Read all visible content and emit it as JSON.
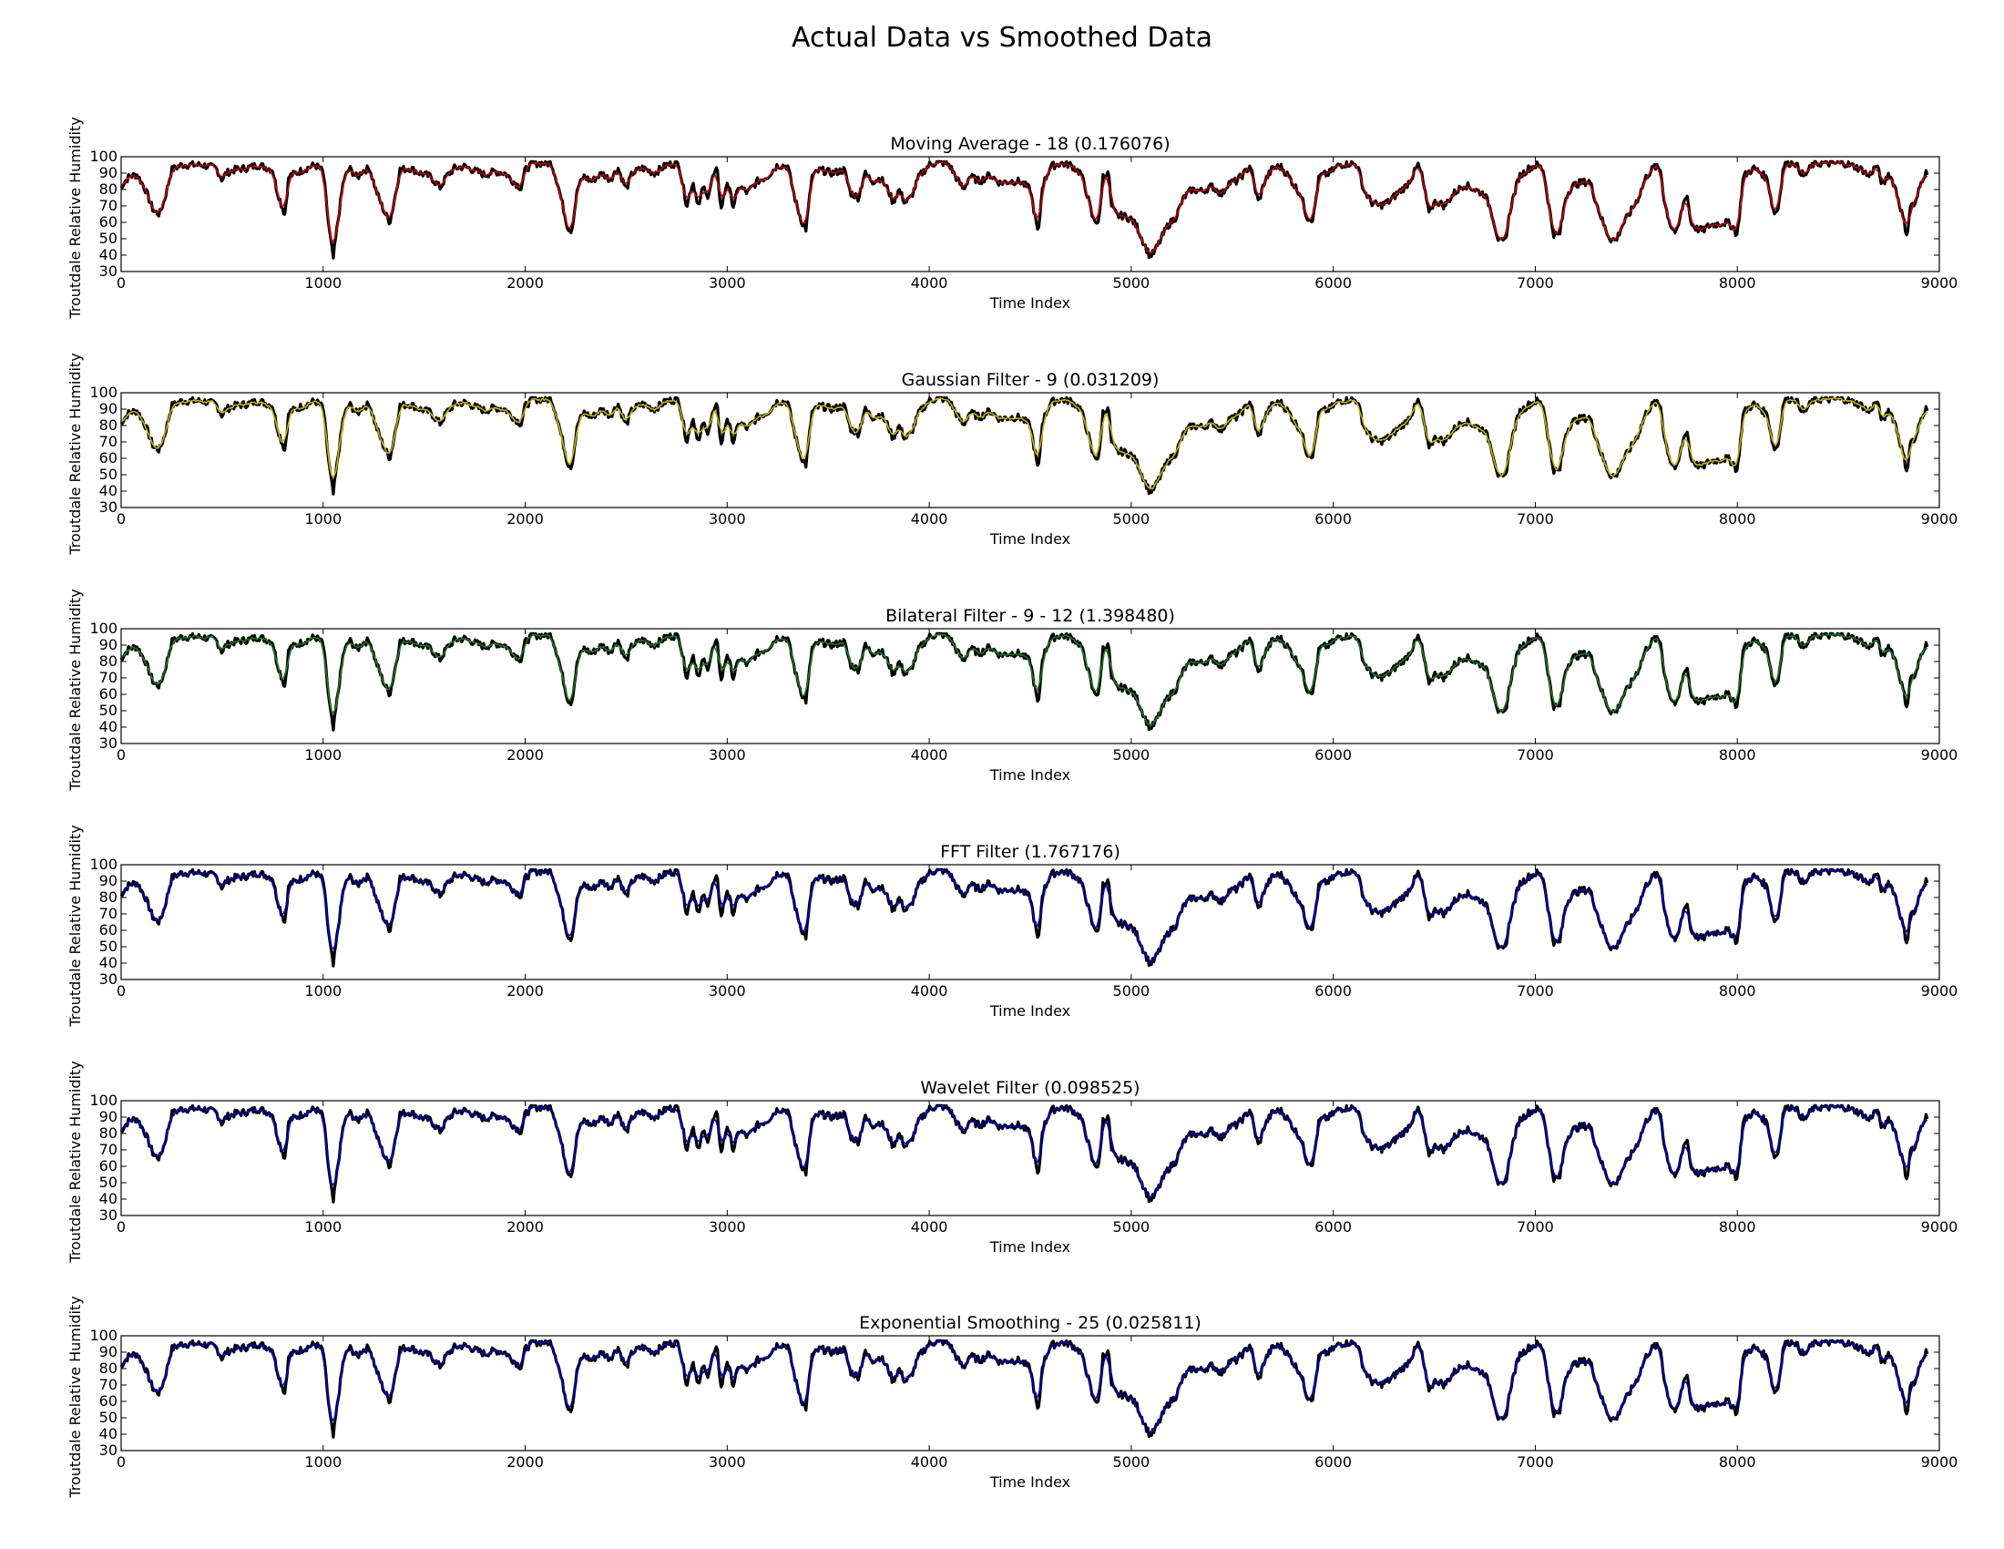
{
  "title": "Actual Data vs Smoothed Data",
  "colors": {
    "actual": "#000000",
    "moving_average": "#cc0000",
    "gaussian": "#c8b400",
    "bilateral": "#1a7a1a",
    "fft": "#0000cc",
    "wavelet": "#0000cc",
    "exponential": "#0000cc"
  },
  "chart_data": [
    {
      "type": "line",
      "title": "Moving Average - 18 (0.176076)",
      "xlabel": "Time Index",
      "ylabel": "Troutdale Relative Humidity",
      "xlim": [
        0,
        9000
      ],
      "ylim": [
        30,
        100
      ],
      "xticks": [
        0,
        1000,
        2000,
        3000,
        4000,
        5000,
        6000,
        7000,
        8000,
        9000
      ],
      "yticks": [
        30,
        40,
        50,
        60,
        70,
        80,
        90,
        100
      ],
      "grid": false,
      "series": [
        {
          "color_key": "actual",
          "lw": 3.2
        },
        {
          "color_key": "moving_average",
          "lw": 1.6,
          "seed": 1
        }
      ]
    },
    {
      "type": "line",
      "title": "Gaussian Filter - 9 (0.031209)",
      "xlabel": "Time Index",
      "ylabel": "Troutdale Relative Humidity",
      "xlim": [
        0,
        9000
      ],
      "ylim": [
        30,
        100
      ],
      "xticks": [
        0,
        1000,
        2000,
        3000,
        4000,
        5000,
        6000,
        7000,
        8000,
        9000
      ],
      "yticks": [
        30,
        40,
        50,
        60,
        70,
        80,
        90,
        100
      ],
      "grid": false,
      "series": [
        {
          "color_key": "actual",
          "lw": 3.2
        },
        {
          "color_key": "gaussian",
          "lw": 1.6,
          "seed": 2
        }
      ]
    },
    {
      "type": "line",
      "title": "Bilateral Filter - 9 - 12 (1.398480)",
      "xlabel": "Time Index",
      "ylabel": "Troutdale Relative Humidity",
      "xlim": [
        0,
        9000
      ],
      "ylim": [
        30,
        100
      ],
      "xticks": [
        0,
        1000,
        2000,
        3000,
        4000,
        5000,
        6000,
        7000,
        8000,
        9000
      ],
      "yticks": [
        30,
        40,
        50,
        60,
        70,
        80,
        90,
        100
      ],
      "grid": false,
      "series": [
        {
          "color_key": "actual",
          "lw": 3.2
        },
        {
          "color_key": "bilateral",
          "lw": 1.6,
          "seed": 3
        }
      ]
    },
    {
      "type": "line",
      "title": "FFT Filter (1.767176)",
      "xlabel": "Time Index",
      "ylabel": "Troutdale Relative Humidity",
      "xlim": [
        0,
        9000
      ],
      "ylim": [
        30,
        100
      ],
      "xticks": [
        0,
        1000,
        2000,
        3000,
        4000,
        5000,
        6000,
        7000,
        8000,
        9000
      ],
      "yticks": [
        30,
        40,
        50,
        60,
        70,
        80,
        90,
        100
      ],
      "grid": false,
      "series": [
        {
          "color_key": "actual",
          "lw": 3.2
        },
        {
          "color_key": "fft",
          "lw": 1.6,
          "seed": 4
        }
      ]
    },
    {
      "type": "line",
      "title": "Wavelet Filter (0.098525)",
      "xlabel": "Time Index",
      "ylabel": "Troutdale Relative Humidity",
      "xlim": [
        0,
        9000
      ],
      "ylim": [
        30,
        100
      ],
      "xticks": [
        0,
        1000,
        2000,
        3000,
        4000,
        5000,
        6000,
        7000,
        8000,
        9000
      ],
      "yticks": [
        30,
        40,
        50,
        60,
        70,
        80,
        90,
        100
      ],
      "grid": false,
      "series": [
        {
          "color_key": "actual",
          "lw": 3.2
        },
        {
          "color_key": "wavelet",
          "lw": 1.6,
          "seed": 5
        }
      ]
    },
    {
      "type": "line",
      "title": "Exponential Smoothing - 25 (0.025811)",
      "xlabel": "Time Index",
      "ylabel": "Troutdale Relative Humidity",
      "xlim": [
        0,
        9000
      ],
      "ylim": [
        30,
        100
      ],
      "xticks": [
        0,
        1000,
        2000,
        3000,
        4000,
        5000,
        6000,
        7000,
        8000,
        9000
      ],
      "yticks": [
        30,
        40,
        50,
        60,
        70,
        80,
        90,
        100
      ],
      "grid": false,
      "series": [
        {
          "color_key": "actual",
          "lw": 3.2
        },
        {
          "color_key": "exponential",
          "lw": 1.6,
          "seed": 6
        }
      ]
    }
  ],
  "humidity_profile": [
    [
      0,
      82
    ],
    [
      40,
      88
    ],
    [
      80,
      89
    ],
    [
      120,
      80
    ],
    [
      160,
      67
    ],
    [
      190,
      65
    ],
    [
      215,
      74
    ],
    [
      250,
      92
    ],
    [
      300,
      95
    ],
    [
      400,
      95
    ],
    [
      470,
      93
    ],
    [
      500,
      86
    ],
    [
      520,
      90
    ],
    [
      560,
      92
    ],
    [
      620,
      93
    ],
    [
      680,
      95
    ],
    [
      750,
      92
    ],
    [
      770,
      80
    ],
    [
      790,
      72
    ],
    [
      810,
      65
    ],
    [
      830,
      88
    ],
    [
      900,
      92
    ],
    [
      960,
      95
    ],
    [
      1000,
      91
    ],
    [
      1030,
      55
    ],
    [
      1050,
      38
    ],
    [
      1070,
      58
    ],
    [
      1100,
      85
    ],
    [
      1130,
      93
    ],
    [
      1150,
      90
    ],
    [
      1170,
      87
    ],
    [
      1190,
      91
    ],
    [
      1230,
      93
    ],
    [
      1260,
      80
    ],
    [
      1300,
      67
    ],
    [
      1330,
      60
    ],
    [
      1350,
      72
    ],
    [
      1380,
      92
    ],
    [
      1430,
      93
    ],
    [
      1480,
      90
    ],
    [
      1530,
      88
    ],
    [
      1580,
      81
    ],
    [
      1610,
      88
    ],
    [
      1650,
      93
    ],
    [
      1700,
      94
    ],
    [
      1760,
      91
    ],
    [
      1800,
      89
    ],
    [
      1850,
      91
    ],
    [
      1900,
      90
    ],
    [
      1950,
      84
    ],
    [
      1980,
      81
    ],
    [
      2000,
      92
    ],
    [
      2040,
      96
    ],
    [
      2100,
      96
    ],
    [
      2130,
      96
    ],
    [
      2160,
      84
    ],
    [
      2190,
      68
    ],
    [
      2210,
      57
    ],
    [
      2230,
      55
    ],
    [
      2260,
      81
    ],
    [
      2290,
      88
    ],
    [
      2330,
      85
    ],
    [
      2380,
      90
    ],
    [
      2420,
      86
    ],
    [
      2460,
      93
    ],
    [
      2500,
      80
    ],
    [
      2530,
      90
    ],
    [
      2580,
      93
    ],
    [
      2640,
      90
    ],
    [
      2700,
      95
    ],
    [
      2760,
      96
    ],
    [
      2800,
      70
    ],
    [
      2830,
      85
    ],
    [
      2860,
      69
    ],
    [
      2880,
      82
    ],
    [
      2900,
      75
    ],
    [
      2930,
      88
    ],
    [
      2950,
      92
    ],
    [
      2970,
      68
    ],
    [
      3000,
      85
    ],
    [
      3030,
      70
    ],
    [
      3060,
      82
    ],
    [
      3100,
      78
    ],
    [
      3150,
      85
    ],
    [
      3200,
      88
    ],
    [
      3250,
      95
    ],
    [
      3300,
      94
    ],
    [
      3340,
      72
    ],
    [
      3370,
      60
    ],
    [
      3390,
      56
    ],
    [
      3420,
      88
    ],
    [
      3460,
      92
    ],
    [
      3520,
      90
    ],
    [
      3580,
      92
    ],
    [
      3610,
      78
    ],
    [
      3650,
      75
    ],
    [
      3680,
      90
    ],
    [
      3720,
      85
    ],
    [
      3760,
      87
    ],
    [
      3800,
      79
    ],
    [
      3820,
      72
    ],
    [
      3850,
      80
    ],
    [
      3880,
      72
    ],
    [
      3910,
      75
    ],
    [
      3950,
      88
    ],
    [
      4000,
      95
    ],
    [
      4050,
      97
    ],
    [
      4100,
      95
    ],
    [
      4130,
      88
    ],
    [
      4170,
      80
    ],
    [
      4200,
      88
    ],
    [
      4250,
      85
    ],
    [
      4300,
      89
    ],
    [
      4350,
      84
    ],
    [
      4400,
      85
    ],
    [
      4450,
      85
    ],
    [
      4500,
      80
    ],
    [
      4540,
      52
    ],
    [
      4560,
      82
    ],
    [
      4600,
      94
    ],
    [
      4650,
      96
    ],
    [
      4700,
      95
    ],
    [
      4750,
      90
    ],
    [
      4780,
      78
    ],
    [
      4810,
      62
    ],
    [
      4840,
      60
    ],
    [
      4860,
      88
    ],
    [
      4880,
      90
    ],
    [
      4890,
      88
    ],
    [
      4900,
      70
    ],
    [
      4930,
      64
    ],
    [
      4960,
      64
    ],
    [
      5000,
      62
    ],
    [
      5030,
      57
    ],
    [
      5060,
      48
    ],
    [
      5090,
      40
    ],
    [
      5110,
      41
    ],
    [
      5140,
      48
    ],
    [
      5180,
      58
    ],
    [
      5220,
      63
    ],
    [
      5260,
      75
    ],
    [
      5300,
      80
    ],
    [
      5350,
      79
    ],
    [
      5400,
      82
    ],
    [
      5450,
      77
    ],
    [
      5480,
      84
    ],
    [
      5520,
      85
    ],
    [
      5560,
      90
    ],
    [
      5590,
      95
    ],
    [
      5610,
      82
    ],
    [
      5630,
      72
    ],
    [
      5660,
      85
    ],
    [
      5700,
      93
    ],
    [
      5740,
      94
    ],
    [
      5780,
      88
    ],
    [
      5810,
      82
    ],
    [
      5840,
      77
    ],
    [
      5870,
      63
    ],
    [
      5900,
      62
    ],
    [
      5930,
      88
    ],
    [
      5980,
      90
    ],
    [
      6030,
      95
    ],
    [
      6080,
      96
    ],
    [
      6120,
      95
    ],
    [
      6150,
      80
    ],
    [
      6190,
      72
    ],
    [
      6230,
      70
    ],
    [
      6280,
      73
    ],
    [
      6320,
      78
    ],
    [
      6360,
      82
    ],
    [
      6390,
      88
    ],
    [
      6420,
      95
    ],
    [
      6440,
      88
    ],
    [
      6470,
      67
    ],
    [
      6510,
      73
    ],
    [
      6550,
      70
    ],
    [
      6600,
      78
    ],
    [
      6650,
      83
    ],
    [
      6700,
      80
    ],
    [
      6750,
      77
    ],
    [
      6780,
      68
    ],
    [
      6820,
      48
    ],
    [
      6850,
      48
    ],
    [
      6880,
      70
    ],
    [
      6920,
      88
    ],
    [
      6970,
      93
    ],
    [
      7010,
      95
    ],
    [
      7040,
      92
    ],
    [
      7070,
      68
    ],
    [
      7090,
      53
    ],
    [
      7120,
      52
    ],
    [
      7150,
      75
    ],
    [
      7180,
      82
    ],
    [
      7220,
      84
    ],
    [
      7270,
      85
    ],
    [
      7310,
      69
    ],
    [
      7340,
      58
    ],
    [
      7370,
      50
    ],
    [
      7400,
      49
    ],
    [
      7430,
      58
    ],
    [
      7470,
      66
    ],
    [
      7510,
      75
    ],
    [
      7550,
      88
    ],
    [
      7590,
      94
    ],
    [
      7620,
      92
    ],
    [
      7640,
      72
    ],
    [
      7670,
      58
    ],
    [
      7700,
      53
    ],
    [
      7730,
      70
    ],
    [
      7750,
      78
    ],
    [
      7770,
      60
    ],
    [
      7800,
      56
    ],
    [
      7830,
      55
    ],
    [
      7860,
      58
    ],
    [
      7900,
      59
    ],
    [
      7950,
      60
    ],
    [
      7980,
      57
    ],
    [
      8000,
      52
    ],
    [
      8030,
      88
    ],
    [
      8080,
      93
    ],
    [
      8120,
      90
    ],
    [
      8150,
      86
    ],
    [
      8180,
      66
    ],
    [
      8200,
      67
    ],
    [
      8230,
      95
    ],
    [
      8280,
      97
    ],
    [
      8330,
      88
    ],
    [
      8380,
      96
    ],
    [
      8430,
      96
    ],
    [
      8480,
      96
    ],
    [
      8530,
      96
    ],
    [
      8580,
      94
    ],
    [
      8620,
      92
    ],
    [
      8650,
      88
    ],
    [
      8690,
      95
    ],
    [
      8720,
      82
    ],
    [
      8750,
      90
    ],
    [
      8780,
      82
    ],
    [
      8810,
      68
    ],
    [
      8840,
      52
    ],
    [
      8860,
      72
    ],
    [
      8880,
      70
    ],
    [
      8900,
      80
    ],
    [
      8920,
      88
    ],
    [
      8940,
      91
    ]
  ]
}
